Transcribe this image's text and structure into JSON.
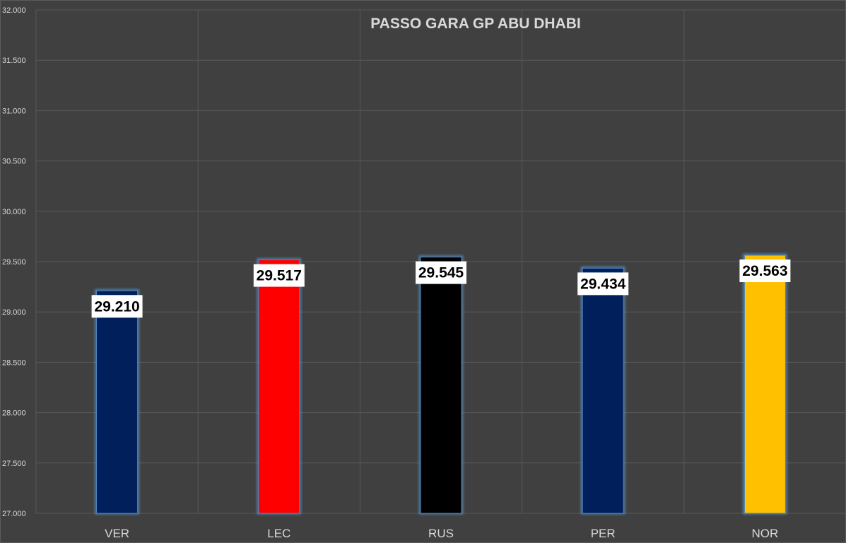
{
  "chart_data": {
    "type": "bar",
    "title": "PASSO GARA GP ABU DHABI",
    "categories": [
      "VER",
      "LEC",
      "RUS",
      "PER",
      "NOR"
    ],
    "values": [
      29.21,
      29.517,
      29.545,
      29.434,
      29.563
    ],
    "data_labels": [
      "29.210",
      "29.517",
      "29.545",
      "29.434",
      "29.563"
    ],
    "bar_colors": [
      "#001f5b",
      "#ff0000",
      "#000000",
      "#001f5b",
      "#ffc000"
    ],
    "ylim": [
      27.0,
      32.0
    ],
    "ytick_values": [
      27.0,
      27.5,
      28.0,
      28.5,
      29.0,
      29.5,
      30.0,
      30.5,
      31.0,
      31.5,
      32.0
    ],
    "ytick_labels": [
      "27.000",
      "27.500",
      "28.000",
      "28.500",
      "29.000",
      "29.500",
      "30.000",
      "30.500",
      "31.000",
      "31.500",
      "32.000"
    ],
    "grid": true,
    "legend": "none",
    "xlabel": "",
    "ylabel": ""
  }
}
